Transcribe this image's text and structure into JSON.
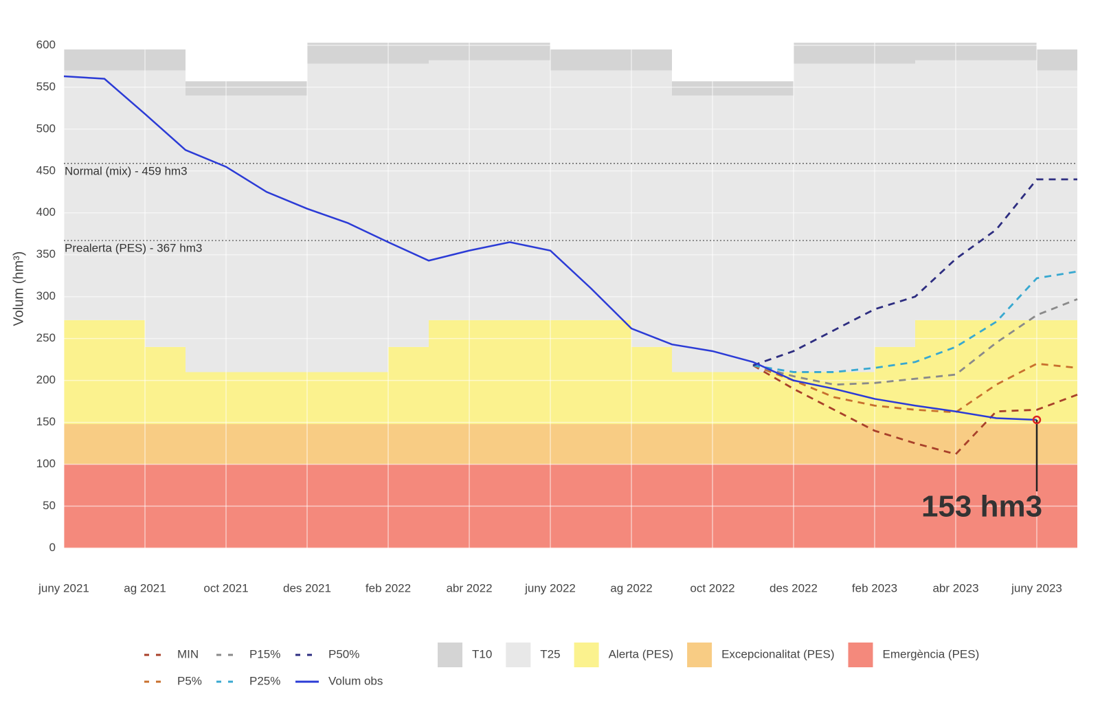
{
  "chart_data": {
    "type": "line",
    "ylabel": "Volum (hm³)",
    "x": [
      "2021-06",
      "2021-07",
      "2021-08",
      "2021-09",
      "2021-10",
      "2021-11",
      "2021-12",
      "2022-01",
      "2022-02",
      "2022-03",
      "2022-04",
      "2022-05",
      "2022-06",
      "2022-07",
      "2022-08",
      "2022-09",
      "2022-10",
      "2022-11",
      "2022-12",
      "2023-01",
      "2023-02",
      "2023-03",
      "2023-04",
      "2023-05",
      "2023-06",
      "2023-07"
    ],
    "xlim": [
      "2021-06",
      "2023-07"
    ],
    "xticks": [
      {
        "value": "2021-06",
        "label": "juny 2021"
      },
      {
        "value": "2021-08",
        "label": "ag 2021"
      },
      {
        "value": "2021-10",
        "label": "oct 2021"
      },
      {
        "value": "2021-12",
        "label": "des 2021"
      },
      {
        "value": "2022-02",
        "label": "feb 2022"
      },
      {
        "value": "2022-04",
        "label": "abr 2022"
      },
      {
        "value": "2022-06",
        "label": "juny 2022"
      },
      {
        "value": "2022-08",
        "label": "ag 2022"
      },
      {
        "value": "2022-10",
        "label": "oct 2022"
      },
      {
        "value": "2022-12",
        "label": "des 2022"
      },
      {
        "value": "2023-02",
        "label": "feb 2023"
      },
      {
        "value": "2023-04",
        "label": "abr 2023"
      },
      {
        "value": "2023-06",
        "label": "juny 2023"
      }
    ],
    "ylim": [
      -25,
      645
    ],
    "yticks": [
      0,
      50,
      100,
      150,
      200,
      250,
      300,
      350,
      400,
      450,
      500,
      550,
      600
    ],
    "grid": true,
    "bands": [
      {
        "name": "T10",
        "color": "#d4d4d4",
        "upper": [
          595,
          595,
          595,
          557,
          557,
          557,
          603,
          603,
          603,
          603,
          603,
          603,
          595,
          595,
          595,
          557,
          557,
          557,
          603,
          603,
          603,
          603,
          603,
          603,
          595,
          595
        ]
      },
      {
        "name": "T25",
        "color": "#e8e8e8",
        "upper": [
          570,
          570,
          570,
          540,
          540,
          540,
          578,
          578,
          578,
          582,
          582,
          582,
          570,
          570,
          570,
          540,
          540,
          540,
          578,
          578,
          578,
          582,
          582,
          582,
          570,
          570
        ]
      },
      {
        "name": "Alerta (PES)",
        "color": "#fbf28e",
        "upper": [
          272,
          272,
          240,
          210,
          210,
          210,
          210,
          210,
          240,
          272,
          272,
          272,
          272,
          272,
          240,
          210,
          210,
          210,
          210,
          210,
          240,
          272,
          272,
          272,
          272,
          272
        ]
      },
      {
        "name": "Excepcionalitat (PES)",
        "color": "#f8cc84",
        "upper": [
          148,
          148,
          148,
          148,
          148,
          148,
          148,
          148,
          148,
          148,
          148,
          148,
          148,
          148,
          148,
          148,
          148,
          148,
          148,
          148,
          148,
          148,
          148,
          148,
          148,
          148
        ]
      },
      {
        "name": "Emergència (PES)",
        "color": "#f4897c",
        "upper": [
          100,
          100,
          100,
          100,
          100,
          100,
          100,
          100,
          100,
          100,
          100,
          100,
          100,
          100,
          100,
          100,
          100,
          100,
          100,
          100,
          100,
          100,
          100,
          100,
          100,
          100
        ]
      }
    ],
    "series": [
      {
        "name": "MIN",
        "color": "#a8402a",
        "dash": "dashed",
        "values": [
          null,
          null,
          null,
          null,
          null,
          null,
          null,
          null,
          null,
          null,
          null,
          null,
          null,
          null,
          null,
          null,
          null,
          218,
          190,
          165,
          140,
          125,
          112,
          163,
          165,
          183
        ]
      },
      {
        "name": "P5%",
        "color": "#c8702e",
        "dash": "dashed",
        "values": [
          null,
          null,
          null,
          null,
          null,
          null,
          null,
          null,
          null,
          null,
          null,
          null,
          null,
          null,
          null,
          null,
          null,
          218,
          200,
          180,
          170,
          165,
          162,
          195,
          220,
          215
        ]
      },
      {
        "name": "P15%",
        "color": "#8a8a8a",
        "dash": "dashed",
        "values": [
          null,
          null,
          null,
          null,
          null,
          null,
          null,
          null,
          null,
          null,
          null,
          null,
          null,
          null,
          null,
          null,
          null,
          218,
          205,
          195,
          197,
          202,
          207,
          245,
          278,
          297
        ]
      },
      {
        "name": "P25%",
        "color": "#38a8d0",
        "dash": "dashed",
        "values": [
          null,
          null,
          null,
          null,
          null,
          null,
          null,
          null,
          null,
          null,
          null,
          null,
          null,
          null,
          null,
          null,
          null,
          218,
          210,
          210,
          215,
          222,
          240,
          270,
          322,
          330
        ]
      },
      {
        "name": "P50%",
        "color": "#2d2d80",
        "dash": "dashed",
        "values": [
          null,
          null,
          null,
          null,
          null,
          null,
          null,
          null,
          null,
          null,
          null,
          null,
          null,
          null,
          null,
          null,
          null,
          218,
          235,
          260,
          285,
          300,
          345,
          380,
          440,
          440
        ]
      },
      {
        "name": "Volum obs",
        "color": "#2b3bd6",
        "dash": "solid",
        "values": [
          563,
          560,
          518,
          475,
          455,
          425,
          405,
          388,
          365,
          343,
          355,
          365,
          355,
          310,
          262,
          243,
          235,
          222,
          200,
          190,
          178,
          170,
          163,
          155,
          153,
          null
        ]
      }
    ],
    "reference_lines": [
      {
        "value": 459,
        "label": "Normal (mix) - 459 hm3"
      },
      {
        "value": 367,
        "label": "Prealerta (PES) - 367 hm3"
      }
    ],
    "annotation": {
      "x": "2023-06",
      "value": 153,
      "label": "153 hm3"
    }
  }
}
